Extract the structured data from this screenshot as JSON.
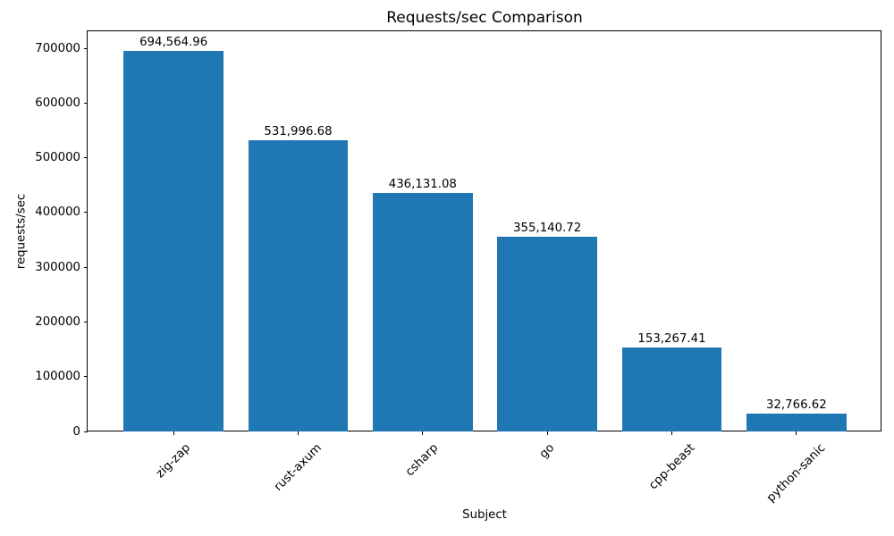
{
  "chart_data": {
    "type": "bar",
    "title": "Requests/sec Comparison",
    "xlabel": "Subject",
    "ylabel": "requests/sec",
    "categories": [
      "zig-zap",
      "rust-axum",
      "csharp",
      "go",
      "cpp-beast",
      "python-sanic"
    ],
    "values": [
      694564.96,
      531996.68,
      436131.08,
      355140.72,
      153267.41,
      32766.62
    ],
    "bar_value_labels": [
      "694,564.96",
      "531,996.68",
      "436,131.08",
      "355,140.72",
      "153,267.41",
      "32,766.62"
    ],
    "yticks": [
      0,
      100000,
      200000,
      300000,
      400000,
      500000,
      600000,
      700000
    ],
    "ytick_labels": [
      "0",
      "100000",
      "200000",
      "300000",
      "400000",
      "500000",
      "600000",
      "700000"
    ],
    "ylim": [
      0,
      731000
    ],
    "xtick_rotation_deg": 45,
    "grid": false,
    "legend": null,
    "bar_color": "#1f77b4",
    "background_color": "#ffffff",
    "text_color": "#000000"
  }
}
